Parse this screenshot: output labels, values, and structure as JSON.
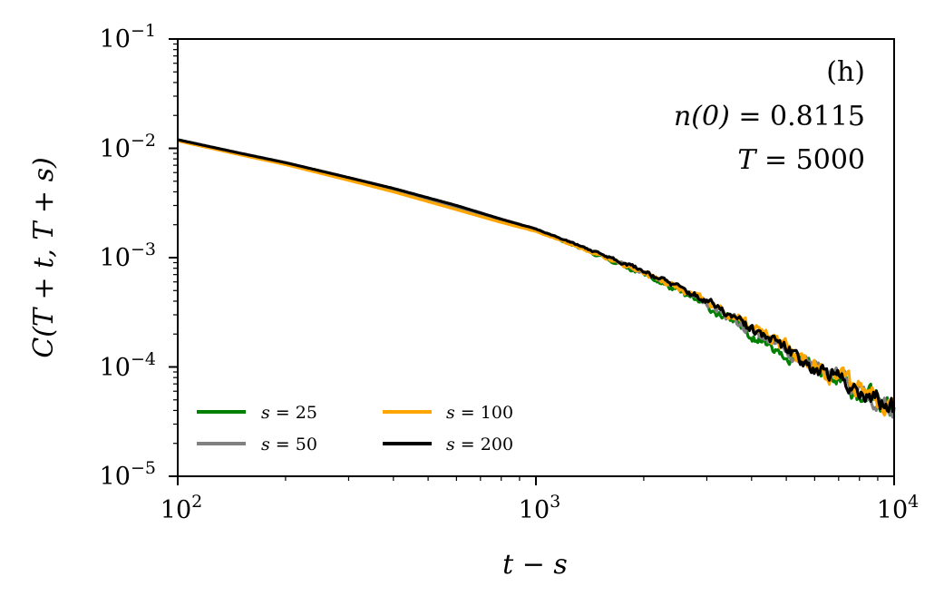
{
  "chart_data": {
    "type": "line",
    "xscale": "log",
    "yscale": "log",
    "xlim": [
      100,
      10000
    ],
    "ylim": [
      1e-05,
      0.1
    ],
    "xlabel": "t − s",
    "ylabel": "C(T + t, T + s)",
    "x_ticks": [
      {
        "base": "10",
        "exp": "2"
      },
      {
        "base": "10",
        "exp": "3"
      },
      {
        "base": "10",
        "exp": "4"
      }
    ],
    "y_ticks": [
      {
        "base": "10",
        "exp": "−5"
      },
      {
        "base": "10",
        "exp": "−4"
      },
      {
        "base": "10",
        "exp": "−3"
      },
      {
        "base": "10",
        "exp": "−2"
      },
      {
        "base": "10",
        "exp": "−1"
      }
    ],
    "annotations": {
      "panel": "(h)",
      "n0_lhs": "n(0)",
      "n0_rhs": " = 0.8115",
      "T_lhs": "T",
      "T_rhs": " = 5000"
    },
    "legend": {
      "placement": "lower-left",
      "columns": 2
    },
    "series": [
      {
        "name_var": "s",
        "name_val": " = 25",
        "color": "#008000",
        "noise": 0.16,
        "seed": 11,
        "x": [
          100,
          150,
          200,
          300,
          400,
          600,
          800,
          1000,
          1500,
          2000,
          3000,
          4000,
          5000,
          6000,
          7000,
          8000,
          9000,
          10000
        ],
        "y": [
          0.0118,
          0.0088,
          0.0072,
          0.0052,
          0.0041,
          0.0028,
          0.00215,
          0.00176,
          0.00104,
          0.00071,
          0.00036,
          0.0002,
          0.000135,
          9.5e-05,
          7.2e-05,
          5.8e-05,
          4.8e-05,
          3.8e-05
        ]
      },
      {
        "name_var": "s",
        "name_val": " = 50",
        "color": "#808080",
        "noise": 0.15,
        "seed": 23,
        "x": [
          100,
          150,
          200,
          300,
          400,
          600,
          800,
          1000,
          1500,
          2000,
          3000,
          4000,
          5000,
          6000,
          7000,
          8000,
          9000,
          10000
        ],
        "y": [
          0.0119,
          0.0089,
          0.0073,
          0.0053,
          0.0042,
          0.0029,
          0.0022,
          0.00179,
          0.00107,
          0.00074,
          0.00039,
          0.00022,
          0.000145,
          0.0001,
          7.8e-05,
          6.2e-05,
          5.2e-05,
          4.2e-05
        ]
      },
      {
        "name_var": "s",
        "name_val": " = 100",
        "color": "#FFA500",
        "noise": 0.17,
        "seed": 37,
        "x": [
          100,
          150,
          200,
          300,
          400,
          600,
          800,
          1000,
          1500,
          2000,
          3000,
          4000,
          5000,
          6000,
          7000,
          8000,
          9000,
          10000
        ],
        "y": [
          0.0117,
          0.0087,
          0.0071,
          0.0051,
          0.004,
          0.00275,
          0.0021,
          0.00174,
          0.00105,
          0.00073,
          0.00039,
          0.00023,
          0.00015,
          0.000105,
          8.2e-05,
          6.6e-05,
          5.5e-05,
          4.5e-05
        ]
      },
      {
        "name_var": "s",
        "name_val": " = 200",
        "color": "#000000",
        "noise": 0.15,
        "seed": 53,
        "x": [
          100,
          150,
          200,
          300,
          400,
          600,
          800,
          1000,
          1500,
          2000,
          3000,
          4000,
          5000,
          6000,
          7000,
          8000,
          9000,
          10000
        ],
        "y": [
          0.012,
          0.009,
          0.0074,
          0.0054,
          0.0043,
          0.003,
          0.00225,
          0.00183,
          0.0011,
          0.00076,
          0.0004,
          0.00022,
          0.000145,
          0.0001,
          7.8e-05,
          6.2e-05,
          5e-05,
          4e-05
        ]
      }
    ]
  }
}
